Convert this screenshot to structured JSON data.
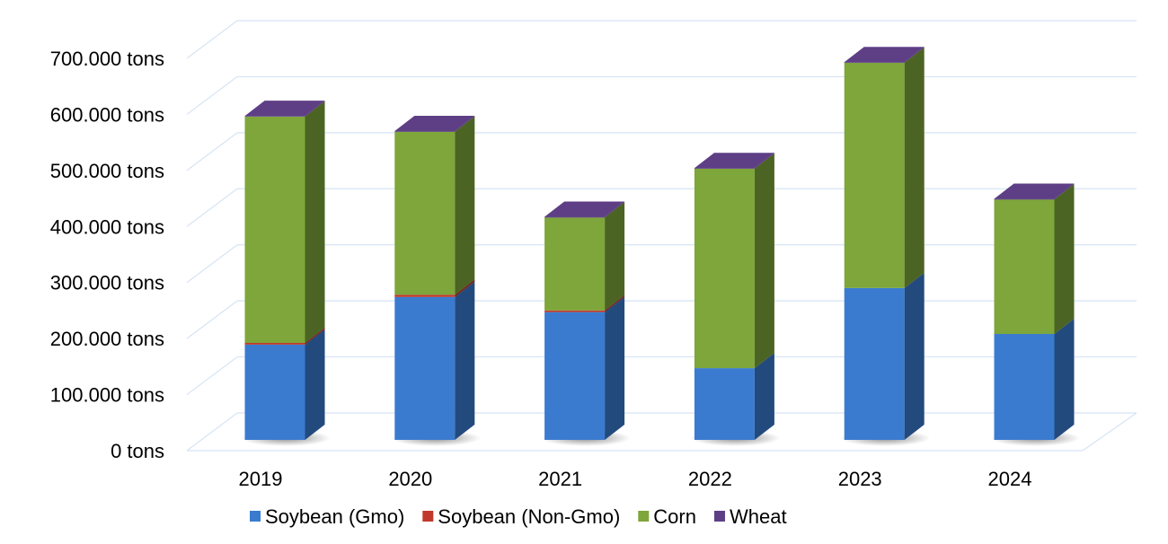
{
  "chart_data": {
    "type": "bar",
    "subtype": "stacked-3d",
    "title": "",
    "xlabel": "",
    "ylabel": "",
    "categories": [
      "2019",
      "2020",
      "2021",
      "2022",
      "2023",
      "2024"
    ],
    "series": [
      {
        "name": "Soybean (Gmo)",
        "color": "#3a7bd0",
        "values": [
          170000,
          255000,
          228000,
          128000,
          271000,
          189000
        ]
      },
      {
        "name": "Soybean (Non-Gmo)",
        "color": "#c0392b",
        "values": [
          3000,
          4000,
          3000,
          0,
          0,
          0
        ]
      },
      {
        "name": "Corn",
        "color": "#7ea63a",
        "values": [
          404000,
          291000,
          166000,
          356000,
          402000,
          240000
        ]
      },
      {
        "name": "Wheat",
        "color": "#5e3f86",
        "values": [
          1000,
          1000,
          1000,
          1000,
          1000,
          1000
        ]
      }
    ],
    "ylim": [
      0,
      700000
    ],
    "yticks": [
      0,
      100000,
      200000,
      300000,
      400000,
      500000,
      600000,
      700000
    ],
    "ytick_labels": [
      "0 tons",
      "100.000 tons",
      "200.000 tons",
      "300.000 tons",
      "400.000 tons",
      "500.000 tons",
      "600.000 tons",
      "700.000 tons"
    ],
    "grid": true,
    "legend_position": "bottom"
  }
}
